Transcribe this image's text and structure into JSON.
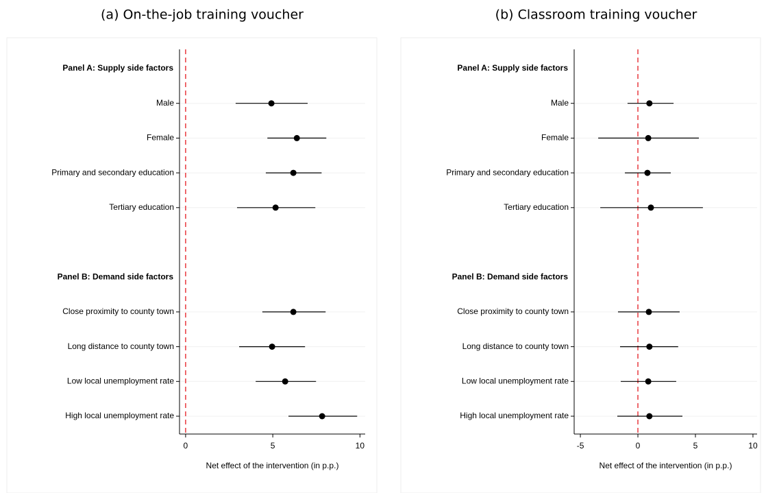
{
  "chart_data": [
    {
      "type": "coefplot",
      "title": "(a) On-the-job training voucher",
      "x_label": "Net effect of the intervention (in p.p.)",
      "xlim": [
        -0.35,
        10.3
      ],
      "xticks": [
        0,
        5,
        10
      ],
      "refline": 0,
      "refline_color": "#e8383d",
      "color": "#000000",
      "grid": true,
      "groups": [
        {
          "name": "Panel A: Supply side factors",
          "categories": [
            "Male",
            "Female",
            "Primary and secondary education",
            "Tertiary education"
          ],
          "values": [
            4.92,
            6.38,
            6.18,
            5.16
          ],
          "lower": [
            2.87,
            4.69,
            4.6,
            2.95
          ],
          "upper": [
            7.0,
            8.07,
            7.8,
            7.44
          ]
        },
        {
          "name": "Panel B: Demand side factors",
          "categories": [
            "Close proximity to county town",
            "Long distance to county town",
            "Low local unemployment rate",
            "High local unemployment rate"
          ],
          "values": [
            6.18,
            4.96,
            5.71,
            7.83
          ],
          "lower": [
            4.4,
            3.07,
            4.02,
            5.9
          ],
          "upper": [
            8.03,
            6.85,
            7.48,
            9.84
          ]
        }
      ]
    },
    {
      "type": "coefplot",
      "title": "(b) Classroom training voucher",
      "x_label": "Net effect of the intervention (in p.p.)",
      "xlim": [
        -5.54,
        10.36
      ],
      "xticks": [
        -5,
        0,
        5,
        10
      ],
      "refline": 0,
      "refline_color": "#e8383d",
      "color": "#000000",
      "grid": true,
      "groups": [
        {
          "name": "Panel A: Supply side factors",
          "categories": [
            "Male",
            "Female",
            "Primary and secondary education",
            "Tertiary education"
          ],
          "values": [
            1.0,
            0.9,
            0.83,
            1.13
          ],
          "lower": [
            -0.9,
            -3.45,
            -1.13,
            -3.27
          ],
          "upper": [
            3.1,
            5.3,
            2.86,
            5.65
          ]
        },
        {
          "name": "Panel B: Demand side factors",
          "categories": [
            "Close proximity to county town",
            "Long distance to county town",
            "Low local unemployment rate",
            "High local unemployment rate"
          ],
          "values": [
            0.95,
            1.0,
            0.9,
            1.0
          ],
          "lower": [
            -1.73,
            -1.55,
            -1.49,
            -1.79
          ],
          "upper": [
            3.63,
            3.5,
            3.33,
            3.87
          ]
        }
      ]
    }
  ]
}
